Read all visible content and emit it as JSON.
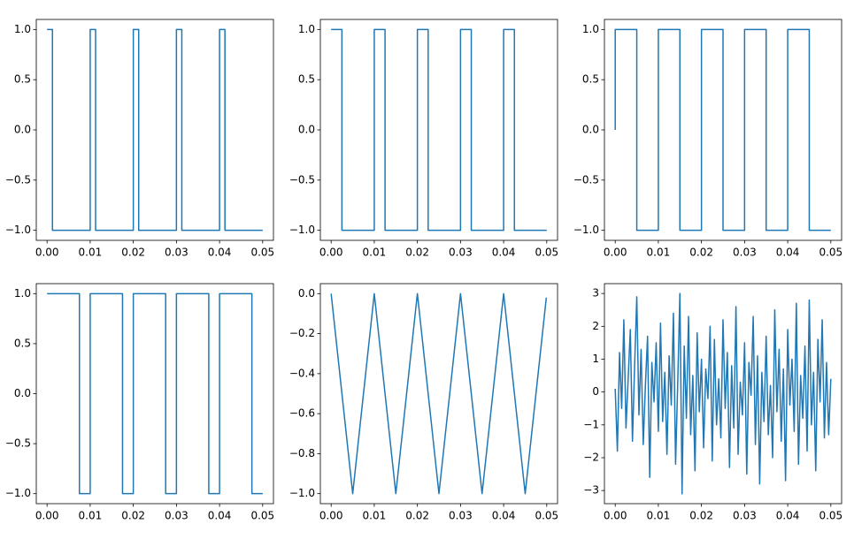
{
  "chart_data": [
    {
      "type": "line",
      "color": "#1f77b4",
      "x": [
        0,
        0.00125,
        0.00125,
        0.01,
        0.01,
        0.01125,
        0.01125,
        0.02,
        0.02,
        0.02125,
        0.02125,
        0.03,
        0.03,
        0.03125,
        0.03125,
        0.04,
        0.04,
        0.04125,
        0.04125,
        0.05
      ],
      "values": [
        1,
        1,
        -1,
        -1,
        1,
        1,
        -1,
        -1,
        1,
        1,
        -1,
        -1,
        1,
        1,
        -1,
        -1,
        1,
        1,
        -1,
        -1
      ],
      "xlim": [
        -0.0025,
        0.0525
      ],
      "ylim": [
        -1.1,
        1.1
      ],
      "xticks": [
        {
          "value": 0,
          "label": "0.00"
        },
        {
          "value": 0.01,
          "label": "0.01"
        },
        {
          "value": 0.02,
          "label": "0.02"
        },
        {
          "value": 0.03,
          "label": "0.03"
        },
        {
          "value": 0.04,
          "label": "0.04"
        },
        {
          "value": 0.05,
          "label": "0.05"
        }
      ],
      "yticks": [
        {
          "value": -1,
          "label": "−1.0"
        },
        {
          "value": -0.5,
          "label": "−0.5"
        },
        {
          "value": 0,
          "label": "0.0"
        },
        {
          "value": 0.5,
          "label": "0.5"
        },
        {
          "value": 1,
          "label": "1.0"
        }
      ]
    },
    {
      "type": "line",
      "color": "#1f77b4",
      "x": [
        0,
        0.0025,
        0.0025,
        0.01,
        0.01,
        0.0125,
        0.0125,
        0.02,
        0.02,
        0.0225,
        0.0225,
        0.03,
        0.03,
        0.0325,
        0.0325,
        0.04,
        0.04,
        0.0425,
        0.0425,
        0.05
      ],
      "values": [
        1,
        1,
        -1,
        -1,
        1,
        1,
        -1,
        -1,
        1,
        1,
        -1,
        -1,
        1,
        1,
        -1,
        -1,
        1,
        1,
        -1,
        -1
      ],
      "xlim": [
        -0.0025,
        0.0525
      ],
      "ylim": [
        -1.1,
        1.1
      ],
      "xticks": [
        {
          "value": 0,
          "label": "0.00"
        },
        {
          "value": 0.01,
          "label": "0.01"
        },
        {
          "value": 0.02,
          "label": "0.02"
        },
        {
          "value": 0.03,
          "label": "0.03"
        },
        {
          "value": 0.04,
          "label": "0.04"
        },
        {
          "value": 0.05,
          "label": "0.05"
        }
      ],
      "yticks": [
        {
          "value": -1,
          "label": "−1.0"
        },
        {
          "value": -0.5,
          "label": "−0.5"
        },
        {
          "value": 0,
          "label": "0.0"
        },
        {
          "value": 0.5,
          "label": "0.5"
        },
        {
          "value": 1,
          "label": "1.0"
        }
      ]
    },
    {
      "type": "line",
      "color": "#1f77b4",
      "x": [
        0,
        0,
        0.005,
        0.005,
        0.01,
        0.01,
        0.015,
        0.015,
        0.02,
        0.02,
        0.025,
        0.025,
        0.03,
        0.03,
        0.035,
        0.035,
        0.04,
        0.04,
        0.045,
        0.045,
        0.05
      ],
      "values": [
        0,
        1,
        1,
        -1,
        -1,
        1,
        1,
        -1,
        -1,
        1,
        1,
        -1,
        -1,
        1,
        1,
        -1,
        -1,
        1,
        1,
        -1,
        -1
      ],
      "xlim": [
        -0.0025,
        0.0525
      ],
      "ylim": [
        -1.1,
        1.1
      ],
      "xticks": [
        {
          "value": 0,
          "label": "0.00"
        },
        {
          "value": 0.01,
          "label": "0.01"
        },
        {
          "value": 0.02,
          "label": "0.02"
        },
        {
          "value": 0.03,
          "label": "0.03"
        },
        {
          "value": 0.04,
          "label": "0.04"
        },
        {
          "value": 0.05,
          "label": "0.05"
        }
      ],
      "yticks": [
        {
          "value": -1,
          "label": "−1.0"
        },
        {
          "value": -0.5,
          "label": "−0.5"
        },
        {
          "value": 0,
          "label": "0.0"
        },
        {
          "value": 0.5,
          "label": "0.5"
        },
        {
          "value": 1,
          "label": "1.0"
        }
      ]
    },
    {
      "type": "line",
      "color": "#1f77b4",
      "x": [
        0,
        0.0075,
        0.0075,
        0.01,
        0.01,
        0.0175,
        0.0175,
        0.02,
        0.02,
        0.0275,
        0.0275,
        0.03,
        0.03,
        0.0375,
        0.0375,
        0.04,
        0.04,
        0.0475,
        0.0475,
        0.05
      ],
      "values": [
        1,
        1,
        -1,
        -1,
        1,
        1,
        -1,
        -1,
        1,
        1,
        -1,
        -1,
        1,
        1,
        -1,
        -1,
        1,
        1,
        -1,
        -1
      ],
      "xlim": [
        -0.0025,
        0.0525
      ],
      "ylim": [
        -1.1,
        1.1
      ],
      "xticks": [
        {
          "value": 0,
          "label": "0.00"
        },
        {
          "value": 0.01,
          "label": "0.01"
        },
        {
          "value": 0.02,
          "label": "0.02"
        },
        {
          "value": 0.03,
          "label": "0.03"
        },
        {
          "value": 0.04,
          "label": "0.04"
        },
        {
          "value": 0.05,
          "label": "0.05"
        }
      ],
      "yticks": [
        {
          "value": -1,
          "label": "−1.0"
        },
        {
          "value": -0.5,
          "label": "−0.5"
        },
        {
          "value": 0,
          "label": "0.0"
        },
        {
          "value": 0.5,
          "label": "0.5"
        },
        {
          "value": 1,
          "label": "1.0"
        }
      ]
    },
    {
      "type": "line",
      "color": "#1f77b4",
      "x": [
        0,
        0.005,
        0.01,
        0.015,
        0.02,
        0.025,
        0.03,
        0.035,
        0.04,
        0.045,
        0.0499
      ],
      "values": [
        0,
        -1,
        0,
        -1,
        0,
        -1,
        0,
        -1,
        0,
        -1,
        -0.02
      ],
      "xlim": [
        -0.0025,
        0.0525
      ],
      "ylim": [
        -1.05,
        0.05
      ],
      "xticks": [
        {
          "value": 0,
          "label": "0.00"
        },
        {
          "value": 0.01,
          "label": "0.01"
        },
        {
          "value": 0.02,
          "label": "0.02"
        },
        {
          "value": 0.03,
          "label": "0.03"
        },
        {
          "value": 0.04,
          "label": "0.04"
        },
        {
          "value": 0.05,
          "label": "0.05"
        }
      ],
      "yticks": [
        {
          "value": -1,
          "label": "−1.0"
        },
        {
          "value": -0.8,
          "label": "−0.8"
        },
        {
          "value": -0.6,
          "label": "−0.6"
        },
        {
          "value": -0.4,
          "label": "−0.4"
        },
        {
          "value": -0.2,
          "label": "−0.2"
        },
        {
          "value": 0,
          "label": "0.0"
        }
      ]
    },
    {
      "type": "line",
      "color": "#1f77b4",
      "x": [
        0,
        0.0005,
        0.001,
        0.0015,
        0.002,
        0.0025,
        0.003,
        0.0035,
        0.004,
        0.0045,
        0.005,
        0.0055,
        0.006,
        0.0065,
        0.007,
        0.0075,
        0.008,
        0.0085,
        0.009,
        0.0095,
        0.01,
        0.0105,
        0.011,
        0.0115,
        0.012,
        0.0125,
        0.013,
        0.0135,
        0.014,
        0.0145,
        0.015,
        0.0155,
        0.016,
        0.0165,
        0.017,
        0.0175,
        0.018,
        0.0185,
        0.019,
        0.0195,
        0.02,
        0.0205,
        0.021,
        0.0215,
        0.022,
        0.0225,
        0.023,
        0.0235,
        0.024,
        0.0245,
        0.025,
        0.0255,
        0.026,
        0.0265,
        0.027,
        0.0275,
        0.028,
        0.0285,
        0.029,
        0.0295,
        0.03,
        0.0305,
        0.031,
        0.0315,
        0.032,
        0.0325,
        0.033,
        0.0335,
        0.034,
        0.0345,
        0.035,
        0.0355,
        0.036,
        0.0365,
        0.037,
        0.0375,
        0.038,
        0.0385,
        0.039,
        0.0395,
        0.04,
        0.0405,
        0.041,
        0.0415,
        0.042,
        0.0425,
        0.043,
        0.0435,
        0.044,
        0.0445,
        0.045,
        0.0455,
        0.046,
        0.0465,
        0.047,
        0.0475,
        0.048,
        0.0485,
        0.049,
        0.0495,
        0.05
      ],
      "values": [
        0.1,
        -1.8,
        1.2,
        -0.5,
        2.2,
        -1.1,
        0.4,
        1.9,
        -1.5,
        0.8,
        2.9,
        -0.7,
        1.3,
        -1.6,
        0.2,
        1.7,
        -2.6,
        0.9,
        -0.3,
        1.5,
        -1.2,
        2.1,
        -0.9,
        0.6,
        -1.9,
        1.1,
        -0.4,
        2.4,
        -2.2,
        0.3,
        3.0,
        -3.1,
        1.4,
        -0.8,
        2.3,
        -1.3,
        0.5,
        -2.4,
        1.8,
        -0.6,
        1.0,
        -1.7,
        0.7,
        -0.2,
        2.0,
        -2.1,
        1.6,
        -1.0,
        0.4,
        -1.4,
        2.2,
        -0.5,
        1.2,
        -2.3,
        0.8,
        -1.1,
        2.6,
        -1.9,
        0.3,
        -0.7,
        1.5,
        -2.5,
        0.9,
        -0.1,
        2.3,
        -1.6,
        1.1,
        -2.8,
        0.6,
        -0.9,
        1.7,
        -1.3,
        0.2,
        -2.0,
        2.5,
        -0.6,
        1.3,
        -1.5,
        0.7,
        -2.7,
        1.9,
        -0.4,
        1.0,
        -1.2,
        2.7,
        -2.2,
        0.5,
        -0.8,
        1.4,
        -1.8,
        2.8,
        -1.0,
        0.6,
        -2.4,
        1.6,
        -0.3,
        2.2,
        -1.4,
        0.9,
        -1.3,
        0.4
      ],
      "xlim": [
        -0.0025,
        0.0525
      ],
      "ylim": [
        -3.4,
        3.3
      ],
      "xticks": [
        {
          "value": 0,
          "label": "0.00"
        },
        {
          "value": 0.01,
          "label": "0.01"
        },
        {
          "value": 0.02,
          "label": "0.02"
        },
        {
          "value": 0.03,
          "label": "0.03"
        },
        {
          "value": 0.04,
          "label": "0.04"
        },
        {
          "value": 0.05,
          "label": "0.05"
        }
      ],
      "yticks": [
        {
          "value": -3,
          "label": "−3"
        },
        {
          "value": -2,
          "label": "−2"
        },
        {
          "value": -1,
          "label": "−1"
        },
        0,
        1,
        2,
        3
      ]
    }
  ]
}
